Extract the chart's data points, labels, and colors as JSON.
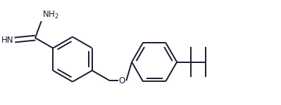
{
  "bg_color": "#ffffff",
  "line_color": "#1a1a2e",
  "line_width": 1.4,
  "font_size": 8.5,
  "figsize": [
    3.99,
    1.5
  ],
  "dpi": 100,
  "xlim": [
    0.0,
    1.0
  ],
  "ylim": [
    0.0,
    1.0
  ]
}
